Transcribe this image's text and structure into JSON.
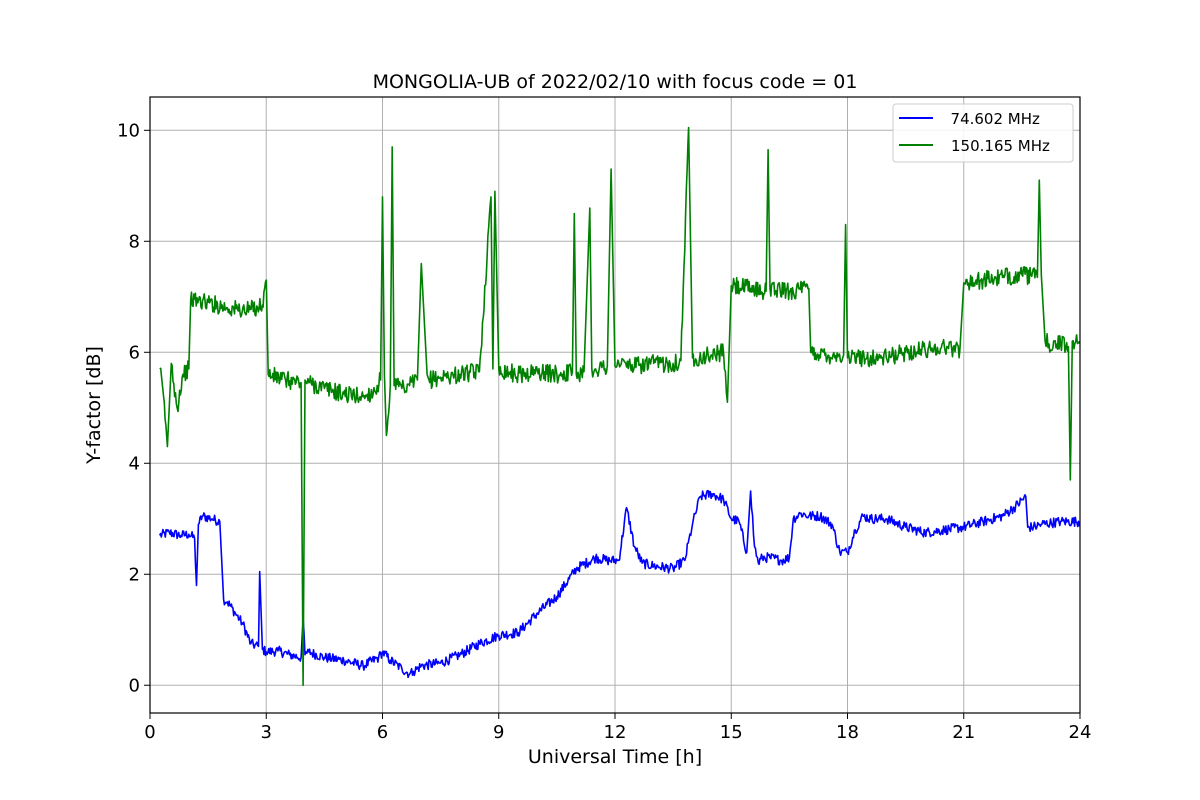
{
  "chart_data": {
    "type": "line",
    "title": "MONGOLIA-UB of 2022/02/10 with focus code = 01",
    "xlabel": "Universal Time [h]",
    "ylabel": "Y-factor [dB]",
    "xlim": [
      0,
      24
    ],
    "ylim": [
      -0.5,
      10.6
    ],
    "xticks": [
      0,
      3,
      6,
      9,
      12,
      15,
      18,
      21,
      24
    ],
    "yticks": [
      0,
      2,
      4,
      6,
      8,
      10
    ],
    "grid": true,
    "legend": "top-right",
    "series": [
      {
        "name": "  74.602 MHz",
        "color": "#0000ff",
        "x": [
          0.25,
          0.5,
          0.8,
          1.0,
          1.15,
          1.2,
          1.25,
          1.35,
          1.6,
          1.8,
          1.9,
          2.0,
          2.2,
          2.4,
          2.6,
          2.8,
          2.83,
          2.9,
          3.0,
          3.3,
          3.6,
          3.9,
          3.95,
          4.0,
          4.1,
          4.5,
          5.0,
          5.5,
          5.9,
          6.0,
          6.2,
          6.5,
          6.7,
          6.8,
          7.0,
          7.5,
          8.0,
          8.5,
          9.0,
          9.5,
          10.0,
          10.5,
          11.0,
          11.5,
          11.8,
          12.1,
          12.3,
          12.5,
          12.7,
          13.0,
          13.5,
          13.8,
          14.0,
          14.2,
          14.5,
          14.8,
          15.0,
          15.2,
          15.4,
          15.5,
          15.6,
          15.7,
          15.8,
          16.0,
          16.3,
          16.5,
          16.6,
          16.8,
          17.0,
          17.3,
          17.6,
          17.8,
          18.0,
          18.2,
          18.4,
          18.6,
          19.0,
          19.5,
          20.0,
          20.5,
          21.0,
          21.5,
          22.0,
          22.3,
          22.6,
          22.65,
          22.8,
          23.0,
          23.5,
          24.0
        ],
        "values": [
          2.7,
          2.75,
          2.7,
          2.72,
          2.65,
          1.8,
          2.9,
          3.05,
          3.0,
          2.95,
          1.55,
          1.5,
          1.3,
          1.1,
          0.75,
          0.7,
          2.05,
          0.65,
          0.6,
          0.62,
          0.55,
          0.5,
          1.2,
          0.55,
          0.6,
          0.5,
          0.45,
          0.35,
          0.5,
          0.6,
          0.45,
          0.3,
          0.2,
          0.25,
          0.35,
          0.4,
          0.55,
          0.75,
          0.9,
          0.95,
          1.3,
          1.6,
          2.1,
          2.3,
          2.25,
          2.25,
          3.2,
          2.5,
          2.2,
          2.15,
          2.1,
          2.25,
          2.9,
          3.4,
          3.45,
          3.35,
          3.0,
          2.95,
          2.4,
          3.5,
          2.5,
          2.2,
          2.3,
          2.3,
          2.25,
          2.3,
          3.0,
          3.1,
          3.05,
          3.05,
          2.9,
          2.4,
          2.4,
          2.8,
          3.05,
          3.0,
          3.0,
          2.85,
          2.75,
          2.8,
          2.85,
          2.95,
          3.05,
          3.2,
          3.4,
          2.85,
          2.85,
          2.9,
          2.95,
          2.95
        ]
      },
      {
        "name": "150.165 MHz",
        "color": "#008000",
        "x": [
          0.25,
          0.35,
          0.45,
          0.55,
          0.7,
          0.85,
          1.0,
          1.05,
          1.5,
          2.0,
          2.5,
          2.9,
          3.0,
          3.05,
          3.5,
          3.9,
          3.95,
          4.0,
          4.1,
          4.5,
          5.0,
          5.5,
          5.8,
          5.95,
          6.0,
          6.05,
          6.1,
          6.2,
          6.25,
          6.3,
          6.5,
          6.6,
          6.7,
          6.9,
          7.0,
          7.15,
          7.2,
          7.5,
          8.0,
          8.5,
          8.8,
          8.85,
          8.9,
          9.0,
          9.5,
          10.0,
          10.5,
          10.9,
          10.95,
          11.0,
          11.2,
          11.35,
          11.4,
          11.5,
          11.8,
          11.9,
          12.0,
          12.1,
          12.5,
          13.0,
          13.5,
          13.7,
          13.9,
          14.0,
          14.5,
          14.8,
          14.9,
          15.0,
          15.5,
          15.9,
          15.95,
          16.0,
          16.5,
          17.0,
          17.05,
          17.5,
          17.9,
          17.95,
          18.0,
          18.5,
          19.0,
          19.5,
          20.0,
          20.5,
          20.9,
          21.0,
          21.5,
          22.0,
          22.5,
          22.9,
          22.95,
          23.0,
          23.1,
          23.2,
          23.5,
          23.7,
          23.75,
          23.8,
          24.0
        ],
        "values": [
          5.7,
          5.2,
          4.3,
          5.8,
          5.0,
          5.6,
          5.7,
          6.95,
          6.9,
          6.8,
          6.75,
          6.85,
          7.3,
          5.6,
          5.5,
          5.45,
          0.0,
          5.5,
          5.45,
          5.35,
          5.25,
          5.2,
          5.3,
          5.5,
          8.8,
          5.6,
          4.5,
          5.4,
          9.7,
          5.4,
          5.35,
          5.3,
          5.4,
          5.5,
          7.6,
          5.6,
          5.5,
          5.55,
          5.6,
          5.65,
          8.8,
          5.7,
          8.9,
          5.7,
          5.6,
          5.65,
          5.6,
          5.65,
          8.5,
          5.6,
          5.65,
          8.6,
          5.7,
          5.7,
          5.75,
          9.3,
          5.75,
          5.8,
          5.75,
          5.8,
          5.8,
          5.85,
          10.05,
          5.9,
          5.95,
          6.0,
          5.1,
          7.2,
          7.15,
          7.1,
          9.65,
          7.15,
          7.1,
          7.15,
          6.0,
          5.95,
          5.95,
          8.3,
          5.9,
          5.9,
          5.9,
          6.0,
          6.05,
          6.1,
          6.05,
          7.25,
          7.3,
          7.35,
          7.4,
          7.35,
          9.1,
          7.4,
          6.2,
          6.15,
          6.15,
          6.1,
          3.7,
          6.2,
          6.2
        ]
      }
    ]
  }
}
